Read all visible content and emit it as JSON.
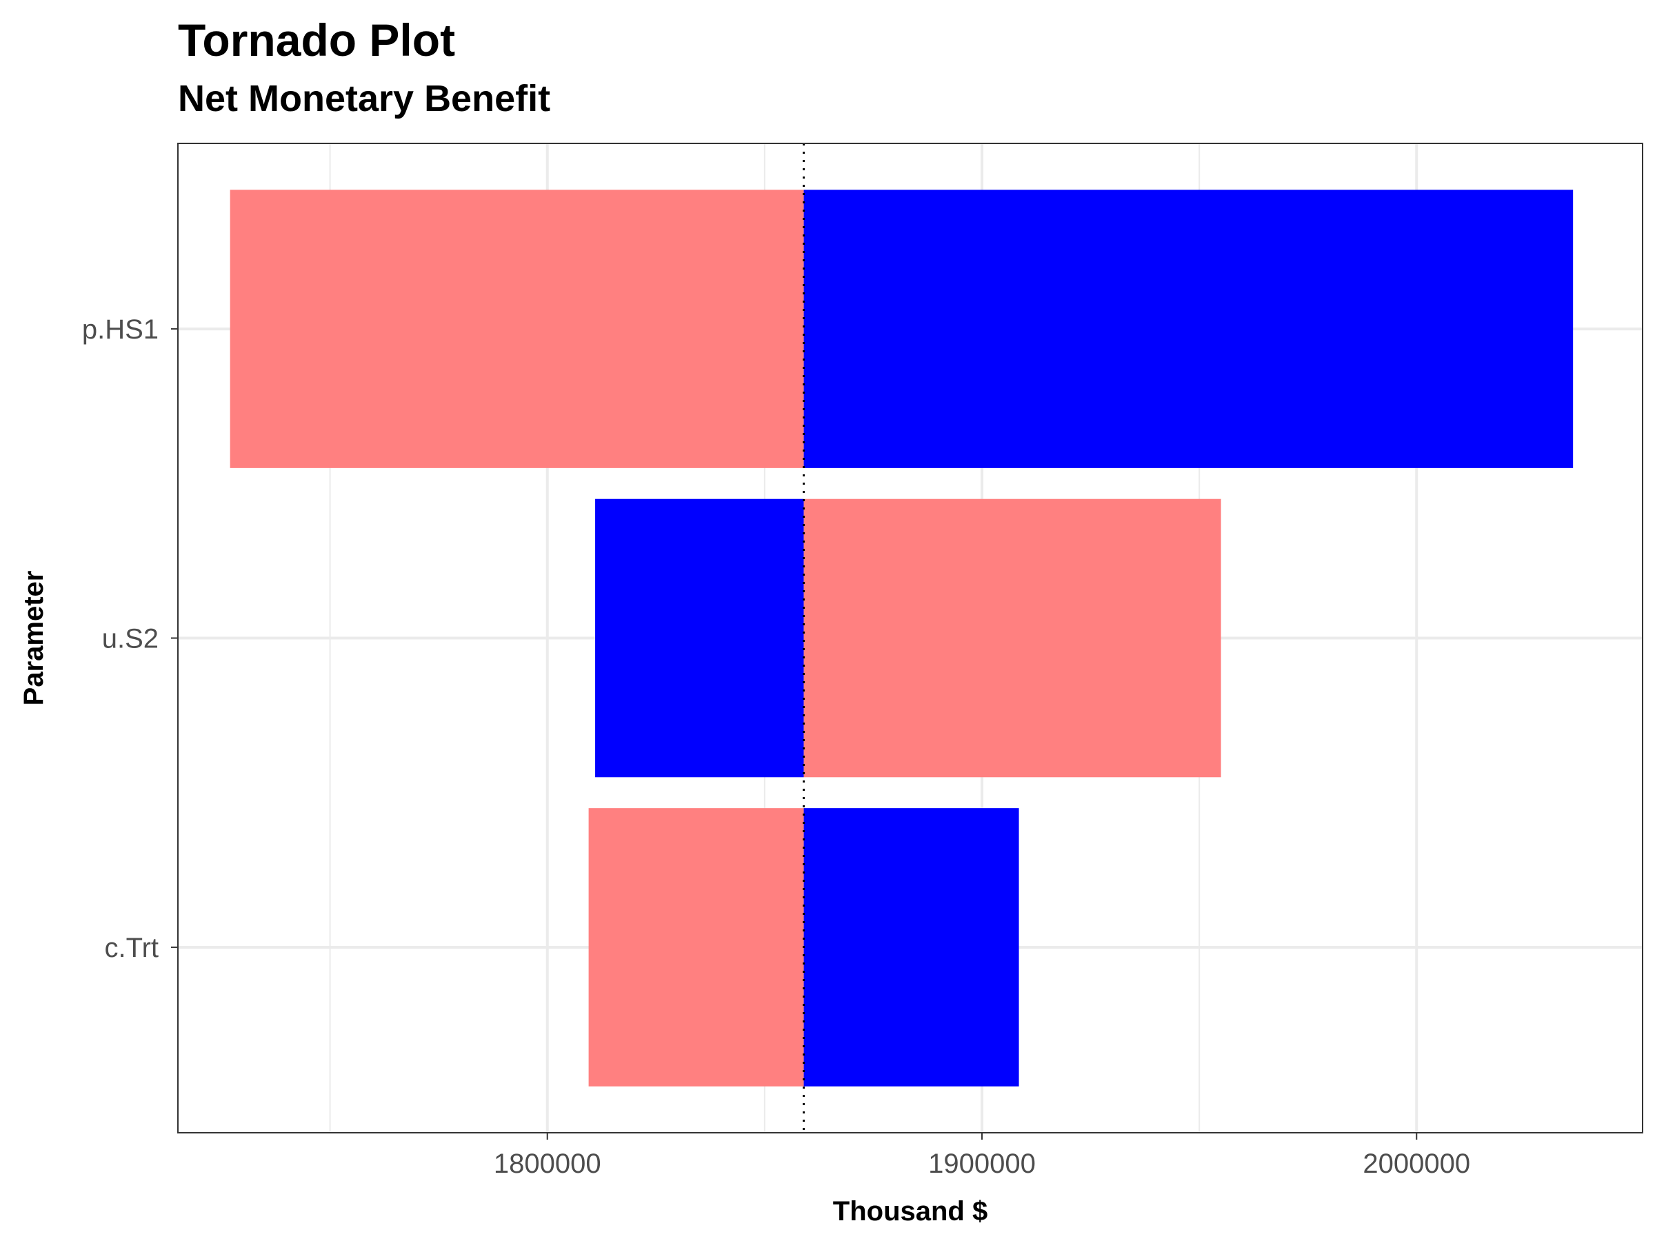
{
  "chart_data": {
    "type": "bar",
    "orientation": "horizontal",
    "title": "Tornado Plot",
    "subtitle": "Net Monetary Benefit",
    "xlabel": "Thousand $",
    "ylabel": "Parameter",
    "xlim": [
      1715000,
      2052000
    ],
    "x_ticks": [
      1800000,
      1900000,
      2000000
    ],
    "x_tick_labels": [
      "1800000",
      "1900000",
      "2000000"
    ],
    "minor_x_ticks": [
      1750000,
      1850000,
      1950000
    ],
    "base_value": 1859000,
    "categories": [
      "p.HS1",
      "u.S2",
      "c.Trt"
    ],
    "bars": [
      {
        "parameter": "p.HS1",
        "low_end": 1727000,
        "high_end": 2036000,
        "left_color": "#ff8080",
        "right_color": "#0000ff"
      },
      {
        "parameter": "u.S2",
        "low_end": 1811000,
        "high_end": 1955000,
        "left_color": "#0000ff",
        "right_color": "#ff8080"
      },
      {
        "parameter": "c.Trt",
        "low_end": 1809500,
        "high_end": 1908500,
        "left_color": "#ff8080",
        "right_color": "#0000ff"
      }
    ],
    "grid": true,
    "legend": "none"
  },
  "colors": {
    "red": "#ff8080",
    "blue": "#0000ff",
    "grid": "#ebebeb",
    "panel_border": "#333333"
  }
}
